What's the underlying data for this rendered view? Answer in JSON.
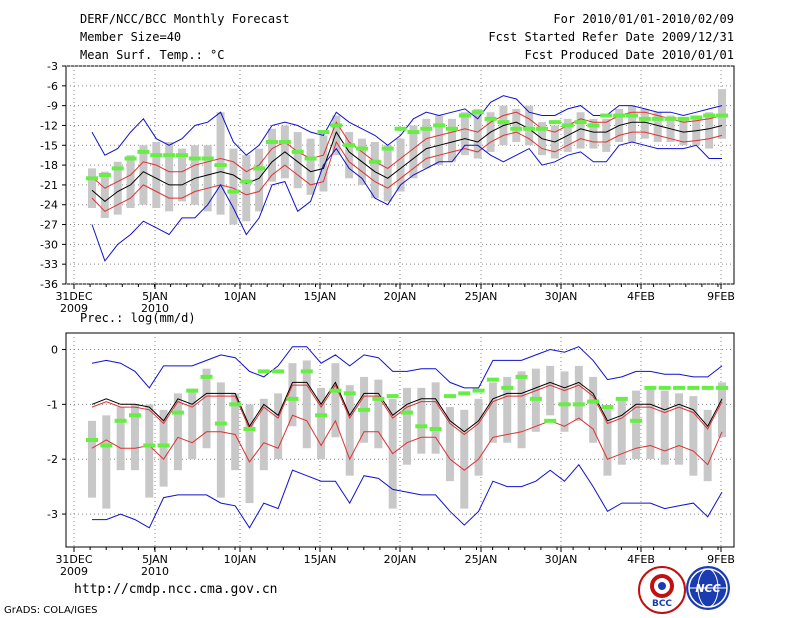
{
  "header": {
    "title": "DERF/NCC/BCC Monthly Forecast",
    "member_size": "Member Size=40",
    "variable": "Mean Surf. Temp.: °C",
    "period": "For 2010/01/01-2010/02/09",
    "start_date": "Fcst Started Refer Date 2009/12/31",
    "produced_date": "Fcst Produced Date 2010/01/01"
  },
  "footer": {
    "url": "http://cmdp.ncc.cma.gov.cn",
    "credit": "GrADS: COLA/IGES",
    "logo_left_text": "BCC",
    "logo_right_text": "NCC"
  },
  "colors": {
    "ensemble_mean": "#000000",
    "spread_band": "#e03030",
    "extreme_band": "#1010d0",
    "box": "#c8c8c8",
    "marker": "#66ee44",
    "grid": "#888888"
  },
  "chart_data": [
    {
      "type": "line",
      "title": "Mean Surf. Temp.: °C",
      "xlabel": "",
      "ylabel": "",
      "x_tick_labels": [
        "31DEC",
        "5JAN",
        "10JAN",
        "15JAN",
        "20JAN",
        "25JAN",
        "30JAN",
        "4FEB",
        "9FEB"
      ],
      "x_tick_sublabels": [
        "2009",
        "2010",
        "",
        "",
        "",
        "",
        "",
        "",
        ""
      ],
      "ylim": [
        -36,
        -3
      ],
      "yticks": [
        -36,
        -33,
        -30,
        -27,
        -24,
        -21,
        -18,
        -15,
        -12,
        -9,
        -6,
        -3
      ],
      "grid": true,
      "series": [
        {
          "name": "ensemble mean",
          "style": "black",
          "values": [
            -21.8,
            -23.5,
            -22.0,
            -21.0,
            -19.0,
            -20.0,
            -21.0,
            -21.0,
            -20.0,
            -19.5,
            -19.0,
            -19.5,
            -20.8,
            -20.0,
            -17.5,
            -16.0,
            -17.5,
            -19.0,
            -18.5,
            -13.0,
            -16.0,
            -17.5,
            -19.0,
            -20.0,
            -18.5,
            -17.0,
            -15.5,
            -15.0,
            -14.5,
            -14.0,
            -14.5,
            -13.0,
            -12.0,
            -11.5,
            -12.5,
            -14.0,
            -14.5,
            -13.5,
            -12.5,
            -13.0,
            -13.0,
            -12.0,
            -11.5,
            -11.5,
            -12.0,
            -12.5,
            -13.0,
            -12.8,
            -12.5,
            -12.0
          ]
        },
        {
          "name": "upper spread",
          "style": "red",
          "values": [
            -19.8,
            -21.5,
            -20.5,
            -19.5,
            -17.5,
            -18.0,
            -19.0,
            -19.0,
            -18.0,
            -17.5,
            -17.0,
            -17.5,
            -19.0,
            -18.0,
            -15.5,
            -14.5,
            -16.0,
            -17.0,
            -16.5,
            -11.5,
            -14.5,
            -16.0,
            -17.5,
            -18.5,
            -17.0,
            -15.5,
            -14.0,
            -13.5,
            -13.0,
            -12.5,
            -13.0,
            -11.5,
            -10.5,
            -10.0,
            -11.0,
            -12.5,
            -13.0,
            -12.0,
            -11.0,
            -11.5,
            -11.5,
            -10.5,
            -10.0,
            -10.0,
            -10.5,
            -11.0,
            -11.5,
            -11.3,
            -11.0,
            -10.5
          ]
        },
        {
          "name": "lower spread",
          "style": "red",
          "values": [
            -23.0,
            -25.0,
            -24.0,
            -23.0,
            -21.0,
            -22.0,
            -23.0,
            -23.0,
            -22.0,
            -21.5,
            -21.0,
            -21.5,
            -22.5,
            -22.0,
            -19.5,
            -18.0,
            -19.5,
            -21.0,
            -20.5,
            -14.5,
            -17.5,
            -19.0,
            -20.5,
            -21.5,
            -20.0,
            -18.5,
            -17.0,
            -16.5,
            -16.0,
            -15.5,
            -16.0,
            -14.5,
            -13.5,
            -13.0,
            -14.0,
            -15.5,
            -16.0,
            -15.0,
            -14.0,
            -14.5,
            -14.5,
            -13.5,
            -13.0,
            -13.0,
            -13.5,
            -14.0,
            -14.5,
            -14.3,
            -14.0,
            -13.5
          ]
        },
        {
          "name": "upper extreme",
          "style": "blue",
          "values": [
            -13.0,
            -16.5,
            -15.5,
            -13.0,
            -11.0,
            -14.0,
            -15.0,
            -14.0,
            -12.0,
            -11.5,
            -10.0,
            -14.5,
            -16.5,
            -15.0,
            -12.0,
            -11.5,
            -12.0,
            -13.0,
            -13.5,
            -10.0,
            -11.5,
            -12.5,
            -13.5,
            -15.0,
            -13.5,
            -11.0,
            -10.0,
            -10.5,
            -10.0,
            -9.5,
            -11.0,
            -8.5,
            -7.5,
            -8.0,
            -10.0,
            -10.5,
            -10.5,
            -9.5,
            -9.0,
            -10.5,
            -10.5,
            -9.0,
            -9.0,
            -9.5,
            -10.0,
            -10.0,
            -10.5,
            -10.0,
            -9.5,
            -9.0
          ]
        },
        {
          "name": "lower extreme",
          "style": "blue",
          "values": [
            -27.0,
            -32.5,
            -30.0,
            -28.5,
            -26.5,
            -27.5,
            -28.5,
            -26.0,
            -26.0,
            -24.0,
            -21.0,
            -24.5,
            -28.5,
            -26.0,
            -21.0,
            -20.5,
            -25.0,
            -23.5,
            -18.0,
            -15.5,
            -18.5,
            -20.0,
            -23.0,
            -24.0,
            -21.0,
            -19.5,
            -18.5,
            -17.5,
            -17.5,
            -15.0,
            -15.0,
            -16.5,
            -17.5,
            -16.5,
            -15.5,
            -18.0,
            -17.5,
            -16.5,
            -16.0,
            -17.5,
            -17.5,
            -15.0,
            -14.5,
            -15.0,
            -15.5,
            -15.5,
            -15.5,
            -15.0,
            -17.0,
            -17.0
          ]
        },
        {
          "name": "observed",
          "style": "green-marker",
          "values": [
            -20.0,
            -19.5,
            -18.5,
            -17.0,
            -16.0,
            -16.5,
            -16.5,
            -16.5,
            -17.0,
            -17.0,
            -18.0,
            -22.0,
            -20.5,
            -18.5,
            -14.5,
            -14.5,
            -16.0,
            -17.0,
            -13.0,
            -12.0,
            -15.0,
            -15.5,
            -17.5,
            -15.5,
            -12.5,
            -13.0,
            -12.5,
            -12.0,
            -12.5,
            -10.5,
            -10.0,
            -11.0,
            -11.5,
            -12.5,
            -12.5,
            -12.5,
            -11.5,
            -12.0,
            -11.5,
            -12.0,
            -10.5,
            -10.5,
            -10.5,
            -11.0,
            -11.0,
            -11.0,
            -11.0,
            -10.8,
            -10.5,
            -10.5
          ]
        },
        {
          "name": "box high",
          "style": "grey-box",
          "values": [
            -18.5,
            -19.0,
            -17.5,
            -16.5,
            -15.0,
            -14.5,
            -14.5,
            -15.5,
            -15.0,
            -15.0,
            -10.0,
            -15.5,
            -16.5,
            -15.5,
            -12.5,
            -12.0,
            -13.0,
            -14.0,
            -13.5,
            -10.5,
            -13.0,
            -14.0,
            -14.5,
            -15.0,
            -14.0,
            -12.0,
            -11.0,
            -10.5,
            -11.0,
            -10.0,
            -9.5,
            -10.0,
            -9.0,
            -9.5,
            -9.0,
            -11.5,
            -12.0,
            -11.0,
            -10.0,
            -11.0,
            -11.0,
            -9.5,
            -9.0,
            -9.5,
            -10.0,
            -10.5,
            -11.0,
            -10.5,
            -10.0,
            -6.5
          ]
        },
        {
          "name": "box low",
          "style": "grey-box",
          "values": [
            -24.5,
            -26.0,
            -25.5,
            -24.5,
            -24.0,
            -24.5,
            -25.0,
            -23.5,
            -24.0,
            -25.0,
            -25.5,
            -27.0,
            -26.5,
            -25.0,
            -20.5,
            -20.0,
            -21.5,
            -22.5,
            -22.0,
            -16.5,
            -20.0,
            -21.0,
            -23.0,
            -23.5,
            -22.0,
            -20.0,
            -18.5,
            -18.0,
            -17.5,
            -16.5,
            -17.0,
            -16.0,
            -15.0,
            -14.5,
            -15.0,
            -16.5,
            -17.0,
            -16.0,
            -15.5,
            -15.5,
            -16.0,
            -14.5,
            -14.5,
            -14.0,
            -14.5,
            -14.5,
            -15.0,
            -15.0,
            -15.5,
            -14.0
          ]
        }
      ]
    },
    {
      "type": "line",
      "title": "Prec.: log(mm/d)",
      "xlabel": "",
      "ylabel": "",
      "x_tick_labels": [
        "31DEC",
        "5JAN",
        "10JAN",
        "15JAN",
        "20JAN",
        "25JAN",
        "30JAN",
        "4FEB",
        "9FEB"
      ],
      "x_tick_sublabels": [
        "2009",
        "2010",
        "",
        "",
        "",
        "",
        "",
        "",
        ""
      ],
      "ylim": [
        -3.6,
        0.3
      ],
      "yticks": [
        -3,
        -2,
        -1,
        0
      ],
      "grid": true,
      "series": [
        {
          "name": "ensemble mean",
          "style": "black",
          "values": [
            -1.0,
            -0.9,
            -1.0,
            -1.0,
            -1.05,
            -1.3,
            -0.9,
            -1.0,
            -0.8,
            -0.8,
            -0.8,
            -1.4,
            -1.0,
            -1.2,
            -0.6,
            -0.6,
            -1.0,
            -0.6,
            -1.2,
            -0.8,
            -0.8,
            -1.2,
            -1.0,
            -0.9,
            -0.9,
            -1.3,
            -1.5,
            -1.3,
            -0.9,
            -0.8,
            -0.8,
            -0.7,
            -0.6,
            -0.7,
            -0.6,
            -0.8,
            -1.3,
            -1.2,
            -1.0,
            -1.0,
            -1.1,
            -1.0,
            -1.1,
            -1.4,
            -0.9
          ]
        },
        {
          "name": "mean variant",
          "style": "red",
          "values": [
            -1.05,
            -0.95,
            -1.05,
            -1.05,
            -1.1,
            -1.35,
            -0.95,
            -1.05,
            -0.85,
            -0.85,
            -0.85,
            -1.45,
            -1.05,
            -1.25,
            -0.65,
            -0.65,
            -1.05,
            -0.65,
            -1.25,
            -0.85,
            -0.85,
            -1.25,
            -1.05,
            -0.95,
            -0.95,
            -1.35,
            -1.55,
            -1.35,
            -0.95,
            -0.85,
            -0.85,
            -0.75,
            -0.65,
            -0.75,
            -0.65,
            -0.85,
            -1.35,
            -1.25,
            -1.05,
            -1.05,
            -1.15,
            -1.05,
            -1.15,
            -1.45,
            -0.95
          ]
        },
        {
          "name": "lower spread",
          "style": "red",
          "values": [
            -1.8,
            -1.65,
            -1.8,
            -1.8,
            -1.75,
            -2.0,
            -1.6,
            -1.7,
            -1.5,
            -1.5,
            -1.55,
            -2.05,
            -1.7,
            -1.8,
            -1.2,
            -1.3,
            -1.75,
            -1.3,
            -2.0,
            -1.5,
            -1.5,
            -1.9,
            -1.7,
            -1.6,
            -1.6,
            -2.0,
            -2.2,
            -2.0,
            -1.6,
            -1.55,
            -1.5,
            -1.4,
            -1.3,
            -1.4,
            -1.25,
            -1.45,
            -2.0,
            -1.9,
            -1.8,
            -1.75,
            -1.85,
            -1.75,
            -1.85,
            -2.1,
            -1.5
          ]
        },
        {
          "name": "upper extreme",
          "style": "blue",
          "values": [
            -0.25,
            -0.2,
            -0.25,
            -0.4,
            -0.7,
            -0.3,
            -0.3,
            -0.3,
            -0.2,
            -0.1,
            -0.15,
            -0.4,
            -0.5,
            -0.3,
            0.05,
            0.05,
            -0.25,
            -0.1,
            -0.3,
            -0.1,
            -0.15,
            -0.4,
            -0.4,
            -0.35,
            -0.35,
            -0.6,
            -0.7,
            -0.7,
            -0.2,
            -0.2,
            -0.2,
            -0.1,
            0.0,
            -0.05,
            0.05,
            -0.2,
            -0.55,
            -0.5,
            -0.4,
            -0.4,
            -0.45,
            -0.45,
            -0.5,
            -0.5,
            -0.3
          ]
        },
        {
          "name": "lower extreme",
          "style": "blue",
          "values": [
            -3.1,
            -3.1,
            -3.0,
            -3.1,
            -3.25,
            -2.7,
            -2.65,
            -2.65,
            -2.65,
            -2.8,
            -2.85,
            -3.25,
            -2.8,
            -2.9,
            -2.2,
            -2.3,
            -2.4,
            -2.4,
            -2.8,
            -2.3,
            -2.35,
            -2.55,
            -2.6,
            -2.65,
            -2.65,
            -2.95,
            -3.2,
            -2.95,
            -2.4,
            -2.5,
            -2.5,
            -2.4,
            -2.2,
            -2.4,
            -2.1,
            -2.5,
            -2.95,
            -2.8,
            -2.8,
            -2.8,
            -2.9,
            -2.85,
            -2.8,
            -3.05,
            -2.6
          ]
        },
        {
          "name": "observed",
          "style": "green-marker",
          "values": [
            -1.65,
            -1.75,
            -1.3,
            -1.2,
            -1.75,
            -1.75,
            -1.15,
            -0.75,
            -0.5,
            -1.35,
            -1.0,
            -1.45,
            -0.4,
            -0.4,
            -0.9,
            -0.4,
            -1.2,
            -0.75,
            -0.8,
            -1.1,
            -0.9,
            -0.85,
            -1.15,
            -1.4,
            -1.45,
            -0.85,
            -0.8,
            -0.75,
            -0.55,
            -0.7,
            -0.5,
            -0.9,
            -1.3,
            -1.0,
            -1.0,
            -0.95,
            -1.05,
            -0.9,
            -1.3,
            -0.7,
            -0.7,
            -0.7,
            -0.7,
            -0.7,
            -0.7
          ]
        },
        {
          "name": "box high",
          "style": "grey-box",
          "values": [
            -1.3,
            -1.2,
            -1.05,
            -1.0,
            -1.0,
            -1.1,
            -0.8,
            -0.75,
            -0.35,
            -0.6,
            -0.8,
            -1.0,
            -0.9,
            -0.8,
            -0.25,
            -0.2,
            -0.7,
            -0.25,
            -0.65,
            -0.5,
            -0.55,
            -0.9,
            -0.7,
            -0.7,
            -0.6,
            -1.05,
            -1.1,
            -0.9,
            -0.6,
            -0.5,
            -0.4,
            -0.35,
            -0.3,
            -0.4,
            -0.3,
            -0.5,
            -1.05,
            -0.9,
            -0.75,
            -0.7,
            -0.75,
            -0.8,
            -0.85,
            -1.1,
            -0.6
          ]
        },
        {
          "name": "box low",
          "style": "grey-box",
          "values": [
            -2.7,
            -2.9,
            -2.2,
            -2.2,
            -2.7,
            -2.5,
            -2.2,
            -2.0,
            -1.8,
            -2.7,
            -2.2,
            -2.8,
            -2.2,
            -2.0,
            -1.4,
            -1.8,
            -2.0,
            -1.6,
            -2.3,
            -1.7,
            -1.8,
            -2.9,
            -2.1,
            -1.9,
            -1.9,
            -2.4,
            -2.9,
            -2.3,
            -1.7,
            -1.7,
            -1.8,
            -1.5,
            -1.2,
            -1.5,
            -1.3,
            -1.7,
            -2.3,
            -2.1,
            -2.0,
            -2.0,
            -2.1,
            -2.1,
            -2.3,
            -2.4,
            -1.6
          ]
        }
      ]
    }
  ]
}
